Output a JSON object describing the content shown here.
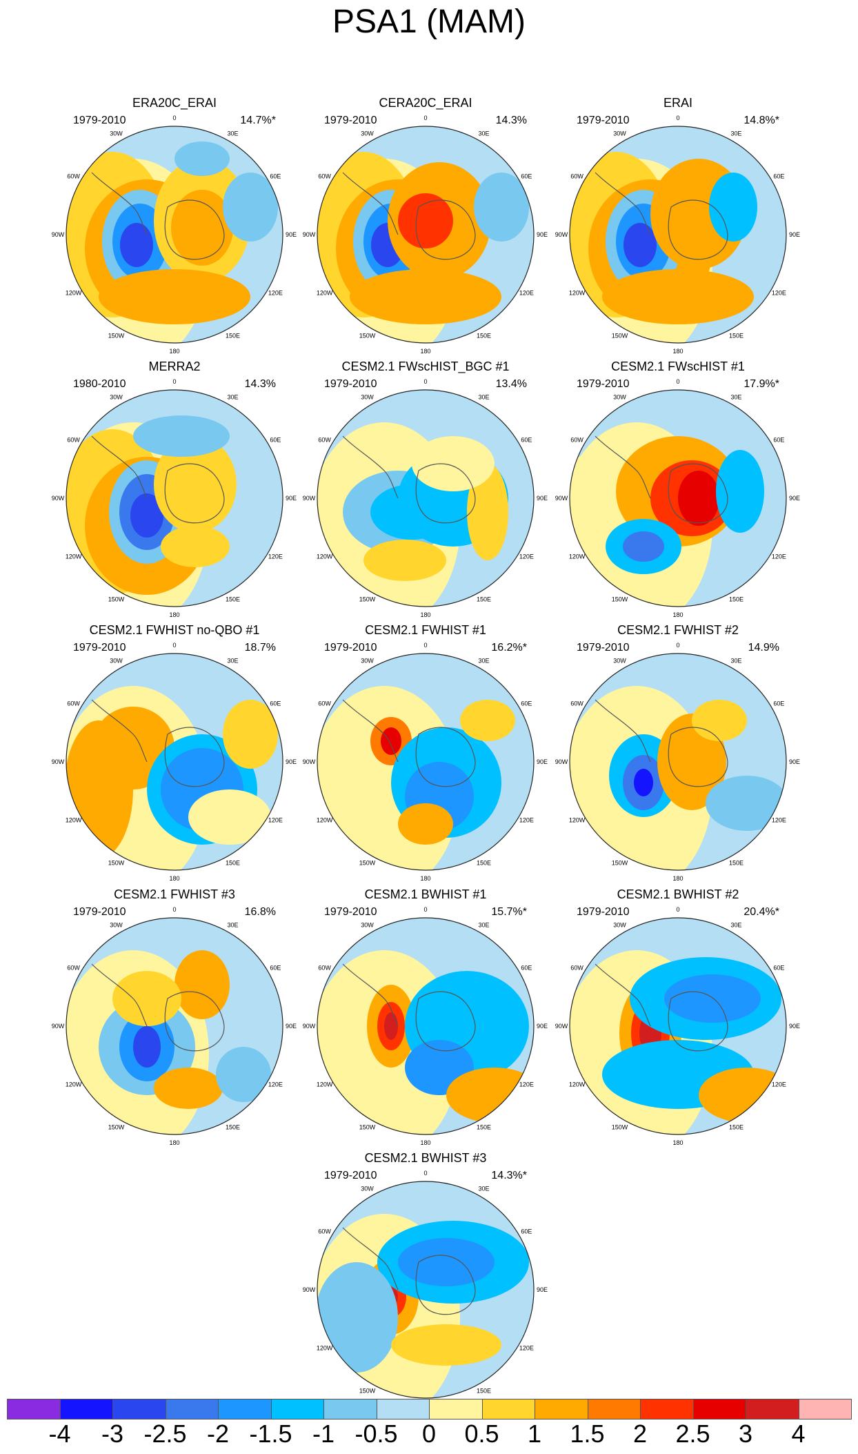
{
  "figure_title": "PSA1 (MAM)",
  "axis_labels": [
    "0",
    "30E",
    "60E",
    "90E",
    "120E",
    "150E",
    "180",
    "150W",
    "120W",
    "90W",
    "60W",
    "30W"
  ],
  "panels": [
    {
      "title": "ERA20C_ERAI",
      "period": "1979-2010",
      "variance": "14.7%*"
    },
    {
      "title": "CERA20C_ERAI",
      "period": "1979-2010",
      "variance": "14.3%"
    },
    {
      "title": "ERAI",
      "period": "1979-2010",
      "variance": "14.8%*"
    },
    {
      "title": "MERRA2",
      "period": "1980-2010",
      "variance": "14.3%"
    },
    {
      "title": "CESM2.1 FWscHIST_BGC #1",
      "period": "1979-2010",
      "variance": "13.4%"
    },
    {
      "title": "CESM2.1 FWscHIST #1",
      "period": "1979-2010",
      "variance": "17.9%*"
    },
    {
      "title": "CESM2.1 FWHIST no-QBO #1",
      "period": "1979-2010",
      "variance": "18.7%"
    },
    {
      "title": "CESM2.1 FWHIST #1",
      "period": "1979-2010",
      "variance": "16.2%*"
    },
    {
      "title": "CESM2.1 FWHIST #2",
      "period": "1979-2010",
      "variance": "14.9%"
    },
    {
      "title": "CESM2.1 FWHIST #3",
      "period": "1979-2010",
      "variance": "16.8%"
    },
    {
      "title": "CESM2.1 BWHIST #1",
      "period": "1979-2010",
      "variance": "15.7%*"
    },
    {
      "title": "CESM2.1 BWHIST #2",
      "period": "1979-2010",
      "variance": "20.4%*"
    },
    {
      "title": "CESM2.1 BWHIST #3",
      "period": "1979-2010",
      "variance": "14.3%*"
    }
  ],
  "colorbar": {
    "colors": [
      "#8a2be2",
      "#1414ff",
      "#2a46ee",
      "#3a78ee",
      "#1e96ff",
      "#00c0ff",
      "#78c8f0",
      "#b4def4",
      "#fff59e",
      "#ffd52e",
      "#ffaa00",
      "#ff7a00",
      "#ff3200",
      "#e60000",
      "#d21e1e",
      "#ffb4b4"
    ],
    "tick_labels": [
      "-4",
      "-3",
      "-2.5",
      "-2",
      "-1.5",
      "-1",
      "-0.5",
      "0",
      "0.5",
      "1",
      "1.5",
      "2",
      "2.5",
      "3",
      "4"
    ]
  }
}
